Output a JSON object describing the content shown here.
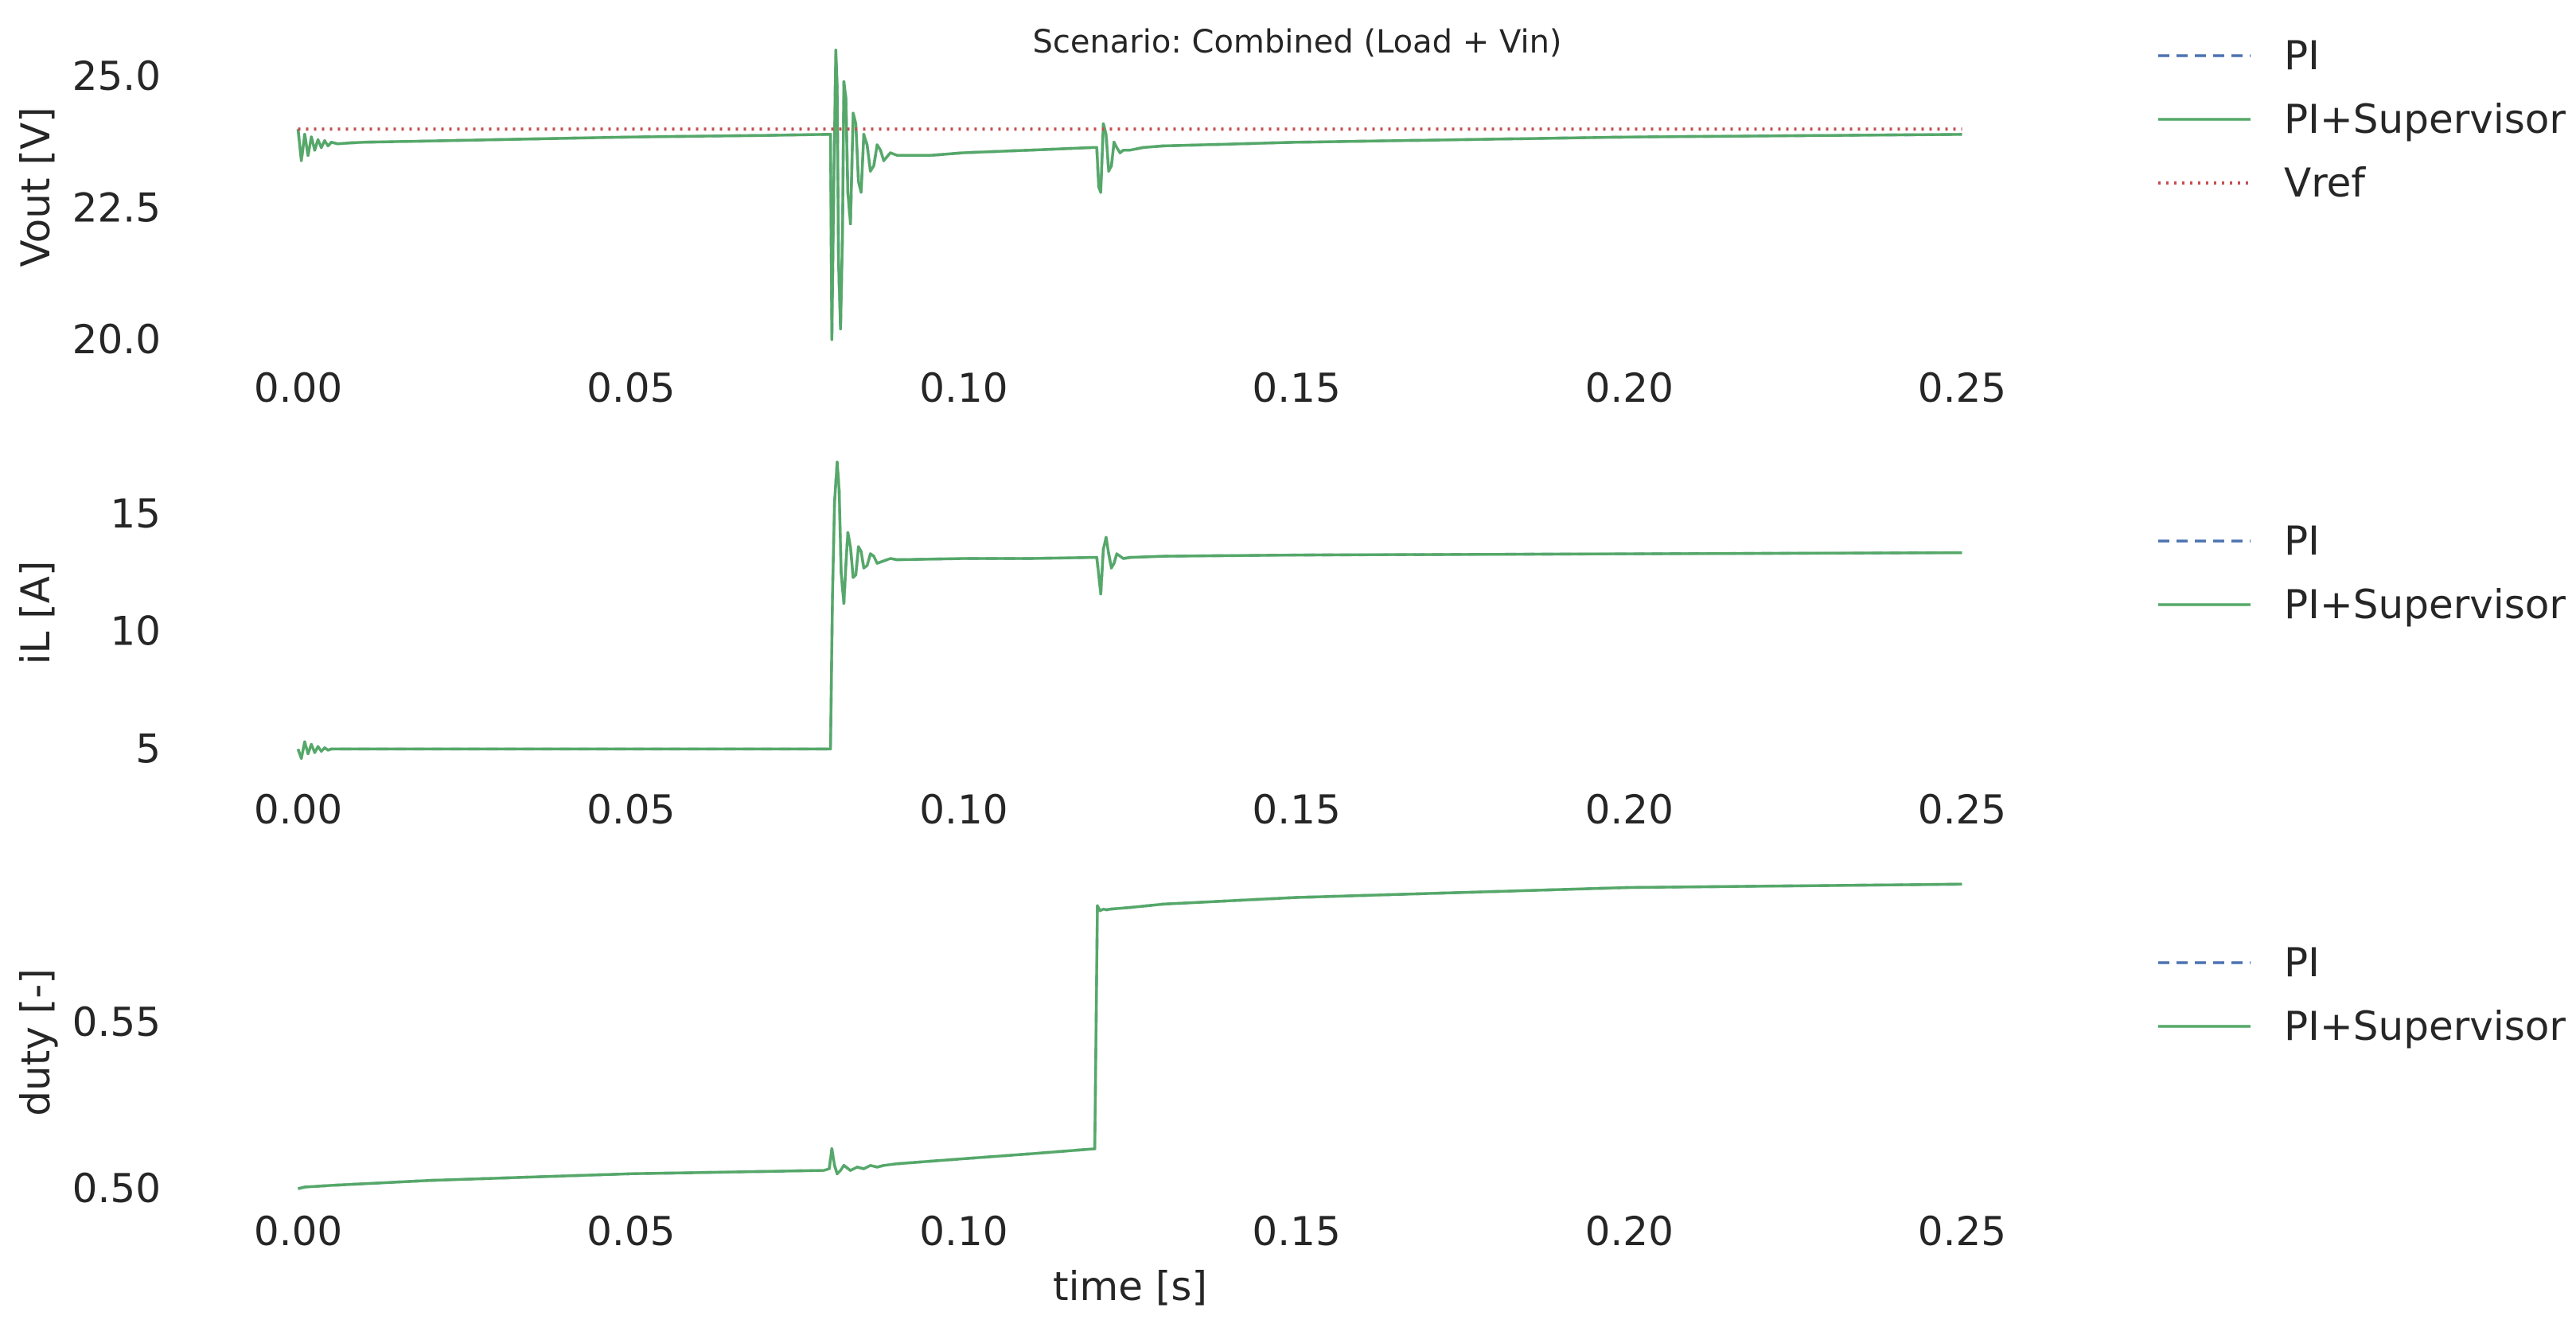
{
  "chart_data": [
    {
      "type": "line",
      "title": "Scenario: Combined (Load + Vin)",
      "xlabel": "",
      "ylabel": "Vout [V]",
      "xlim": [
        -0.0125,
        0.2625
      ],
      "ylim": [
        19.8,
        26.0
      ],
      "xticks": [
        "0.00",
        "0.05",
        "0.10",
        "0.15",
        "0.20",
        "0.25"
      ],
      "yticks": [
        "20.0",
        "22.5",
        "25.0"
      ],
      "legend": "right",
      "series": [
        {
          "name": "PI",
          "style": "dashed",
          "color": "#4c72b0",
          "x": [
            0,
            0.0005,
            0.001,
            0.0015,
            0.002,
            0.0025,
            0.003,
            0.0035,
            0.004,
            0.0045,
            0.005,
            0.006,
            0.008,
            0.01,
            0.03,
            0.05,
            0.07,
            0.0795,
            0.08,
            0.0802,
            0.0805,
            0.0808,
            0.081,
            0.0812,
            0.0815,
            0.0818,
            0.082,
            0.0823,
            0.0826,
            0.083,
            0.0834,
            0.0838,
            0.0842,
            0.0846,
            0.085,
            0.0855,
            0.086,
            0.0865,
            0.087,
            0.0875,
            0.088,
            0.089,
            0.09,
            0.092,
            0.095,
            0.1,
            0.11,
            0.1195,
            0.12,
            0.1203,
            0.1206,
            0.121,
            0.1214,
            0.1218,
            0.1222,
            0.1226,
            0.123,
            0.1235,
            0.124,
            0.125,
            0.127,
            0.13,
            0.15,
            0.2,
            0.25
          ],
          "y": [
            24.0,
            23.4,
            23.9,
            23.5,
            23.85,
            23.6,
            23.8,
            23.65,
            23.78,
            23.68,
            23.75,
            23.72,
            23.74,
            23.75,
            23.8,
            23.85,
            23.88,
            23.9,
            23.9,
            20.0,
            23.0,
            25.5,
            24.8,
            21.5,
            20.2,
            22.0,
            24.9,
            24.6,
            22.8,
            22.2,
            24.3,
            24.1,
            23.0,
            22.8,
            23.9,
            23.7,
            23.2,
            23.3,
            23.7,
            23.6,
            23.4,
            23.55,
            23.5,
            23.5,
            23.5,
            23.55,
            23.6,
            23.65,
            23.65,
            22.9,
            22.8,
            24.1,
            23.9,
            23.2,
            23.3,
            23.75,
            23.65,
            23.55,
            23.6,
            23.6,
            23.65,
            23.68,
            23.75,
            23.85,
            23.9
          ]
        },
        {
          "name": "PI+Supervisor",
          "style": "solid",
          "color": "#55a868",
          "x": [
            0,
            0.0005,
            0.001,
            0.0015,
            0.002,
            0.0025,
            0.003,
            0.0035,
            0.004,
            0.0045,
            0.005,
            0.006,
            0.008,
            0.01,
            0.03,
            0.05,
            0.07,
            0.0795,
            0.08,
            0.0802,
            0.0805,
            0.0808,
            0.081,
            0.0812,
            0.0815,
            0.0818,
            0.082,
            0.0823,
            0.0826,
            0.083,
            0.0834,
            0.0838,
            0.0842,
            0.0846,
            0.085,
            0.0855,
            0.086,
            0.0865,
            0.087,
            0.0875,
            0.088,
            0.089,
            0.09,
            0.092,
            0.095,
            0.1,
            0.11,
            0.1195,
            0.12,
            0.1203,
            0.1206,
            0.121,
            0.1214,
            0.1218,
            0.1222,
            0.1226,
            0.123,
            0.1235,
            0.124,
            0.125,
            0.127,
            0.13,
            0.15,
            0.2,
            0.25
          ],
          "y": [
            24.0,
            23.4,
            23.9,
            23.5,
            23.85,
            23.6,
            23.8,
            23.65,
            23.78,
            23.68,
            23.75,
            23.72,
            23.74,
            23.75,
            23.8,
            23.85,
            23.88,
            23.9,
            23.9,
            20.0,
            23.0,
            25.5,
            24.8,
            21.5,
            20.2,
            22.0,
            24.9,
            24.6,
            22.8,
            22.2,
            24.3,
            24.1,
            23.0,
            22.8,
            23.9,
            23.7,
            23.2,
            23.3,
            23.7,
            23.6,
            23.4,
            23.55,
            23.5,
            23.5,
            23.5,
            23.55,
            23.6,
            23.65,
            23.65,
            22.9,
            22.8,
            24.1,
            23.9,
            23.2,
            23.3,
            23.75,
            23.65,
            23.55,
            23.6,
            23.6,
            23.65,
            23.68,
            23.75,
            23.85,
            23.9
          ]
        },
        {
          "name": "Vref",
          "style": "dotted",
          "color": "#c44e52",
          "x": [
            0,
            0.25
          ],
          "y": [
            24.0,
            24.0
          ]
        }
      ]
    },
    {
      "type": "line",
      "title": "",
      "xlabel": "",
      "ylabel": "iL [A]",
      "xlim": [
        -0.0125,
        0.2625
      ],
      "ylim": [
        4.2,
        17.4
      ],
      "xticks": [
        "0.00",
        "0.05",
        "0.10",
        "0.15",
        "0.20",
        "0.25"
      ],
      "yticks": [
        "5",
        "10",
        "15"
      ],
      "legend": "right",
      "series": [
        {
          "name": "PI",
          "style": "dashed",
          "color": "#4c72b0",
          "x": [
            0,
            0.0005,
            0.001,
            0.0015,
            0.002,
            0.0025,
            0.003,
            0.0035,
            0.004,
            0.0045,
            0.005,
            0.006,
            0.008,
            0.01,
            0.03,
            0.05,
            0.07,
            0.0798,
            0.08,
            0.0803,
            0.0806,
            0.081,
            0.0813,
            0.0816,
            0.082,
            0.0823,
            0.0826,
            0.083,
            0.0834,
            0.0838,
            0.0842,
            0.0846,
            0.085,
            0.0855,
            0.086,
            0.0865,
            0.087,
            0.088,
            0.089,
            0.09,
            0.1,
            0.11,
            0.1195,
            0.12,
            0.1203,
            0.1206,
            0.121,
            0.1214,
            0.1218,
            0.1222,
            0.1226,
            0.123,
            0.1235,
            0.124,
            0.125,
            0.13,
            0.15,
            0.2,
            0.25
          ],
          "y": [
            5.0,
            4.6,
            5.3,
            4.8,
            5.2,
            4.85,
            5.1,
            4.9,
            5.05,
            4.95,
            5.0,
            5.0,
            5.0,
            5.0,
            5.0,
            5.0,
            5.0,
            5.0,
            5.0,
            11.5,
            15.5,
            17.2,
            16.0,
            12.5,
            11.2,
            12.8,
            14.2,
            13.6,
            12.3,
            12.4,
            13.6,
            13.4,
            12.7,
            12.8,
            13.3,
            13.2,
            12.9,
            13.0,
            13.1,
            13.05,
            13.1,
            13.1,
            13.15,
            13.15,
            12.4,
            11.6,
            13.5,
            14.0,
            13.3,
            12.7,
            12.9,
            13.3,
            13.2,
            13.1,
            13.15,
            13.2,
            13.25,
            13.3,
            13.35
          ]
        },
        {
          "name": "PI+Supervisor",
          "style": "solid",
          "color": "#55a868",
          "x": [
            0,
            0.0005,
            0.001,
            0.0015,
            0.002,
            0.0025,
            0.003,
            0.0035,
            0.004,
            0.0045,
            0.005,
            0.006,
            0.008,
            0.01,
            0.03,
            0.05,
            0.07,
            0.0798,
            0.08,
            0.0803,
            0.0806,
            0.081,
            0.0813,
            0.0816,
            0.082,
            0.0823,
            0.0826,
            0.083,
            0.0834,
            0.0838,
            0.0842,
            0.0846,
            0.085,
            0.0855,
            0.086,
            0.0865,
            0.087,
            0.088,
            0.089,
            0.09,
            0.1,
            0.11,
            0.1195,
            0.12,
            0.1203,
            0.1206,
            0.121,
            0.1214,
            0.1218,
            0.1222,
            0.1226,
            0.123,
            0.1235,
            0.124,
            0.125,
            0.13,
            0.15,
            0.2,
            0.25
          ],
          "y": [
            5.0,
            4.6,
            5.3,
            4.8,
            5.2,
            4.85,
            5.1,
            4.9,
            5.05,
            4.95,
            5.0,
            5.0,
            5.0,
            5.0,
            5.0,
            5.0,
            5.0,
            5.0,
            5.0,
            11.5,
            15.5,
            17.2,
            16.0,
            12.5,
            11.2,
            12.8,
            14.2,
            13.6,
            12.3,
            12.4,
            13.6,
            13.4,
            12.7,
            12.8,
            13.3,
            13.2,
            12.9,
            13.0,
            13.1,
            13.05,
            13.1,
            13.1,
            13.15,
            13.15,
            12.4,
            11.6,
            13.5,
            14.0,
            13.3,
            12.7,
            12.9,
            13.3,
            13.2,
            13.1,
            13.15,
            13.2,
            13.25,
            13.3,
            13.35
          ]
        }
      ]
    },
    {
      "type": "line",
      "title": "",
      "xlabel": "time [s]",
      "ylabel": "duty [-]",
      "xlim": [
        -0.0125,
        0.2625
      ],
      "ylim": [
        0.495,
        0.593
      ],
      "xticks": [
        "0.00",
        "0.05",
        "0.10",
        "0.15",
        "0.20",
        "0.25"
      ],
      "yticks": [
        "0.50",
        "0.55"
      ],
      "legend": "right",
      "series": [
        {
          "name": "PI",
          "style": "dashed",
          "color": "#4c72b0",
          "x": [
            0,
            0.001,
            0.005,
            0.02,
            0.05,
            0.079,
            0.0798,
            0.0802,
            0.0806,
            0.081,
            0.0815,
            0.082,
            0.083,
            0.084,
            0.085,
            0.086,
            0.087,
            0.088,
            0.09,
            0.1,
            0.11,
            0.1197,
            0.1201,
            0.1205,
            0.121,
            0.1215,
            0.122,
            0.125,
            0.13,
            0.15,
            0.2,
            0.25
          ],
          "y": [
            0.5,
            0.5005,
            0.501,
            0.5025,
            0.5045,
            0.5055,
            0.506,
            0.512,
            0.507,
            0.5045,
            0.5055,
            0.507,
            0.5055,
            0.5065,
            0.506,
            0.507,
            0.5065,
            0.507,
            0.5075,
            0.509,
            0.5105,
            0.512,
            0.585,
            0.5835,
            0.584,
            0.5838,
            0.584,
            0.5845,
            0.5855,
            0.5875,
            0.5905,
            0.5915
          ]
        },
        {
          "name": "PI+Supervisor",
          "style": "solid",
          "color": "#55a868",
          "x": [
            0,
            0.001,
            0.005,
            0.02,
            0.05,
            0.079,
            0.0798,
            0.0802,
            0.0806,
            0.081,
            0.0815,
            0.082,
            0.083,
            0.084,
            0.085,
            0.086,
            0.087,
            0.088,
            0.09,
            0.1,
            0.11,
            0.1197,
            0.1201,
            0.1205,
            0.121,
            0.1215,
            0.122,
            0.125,
            0.13,
            0.15,
            0.2,
            0.25
          ],
          "y": [
            0.5,
            0.5005,
            0.501,
            0.5025,
            0.5045,
            0.5055,
            0.506,
            0.512,
            0.507,
            0.5045,
            0.5055,
            0.507,
            0.5055,
            0.5065,
            0.506,
            0.507,
            0.5065,
            0.507,
            0.5075,
            0.509,
            0.5105,
            0.512,
            0.585,
            0.5835,
            0.584,
            0.5838,
            0.584,
            0.5845,
            0.5855,
            0.5875,
            0.5905,
            0.5915
          ]
        }
      ]
    }
  ]
}
